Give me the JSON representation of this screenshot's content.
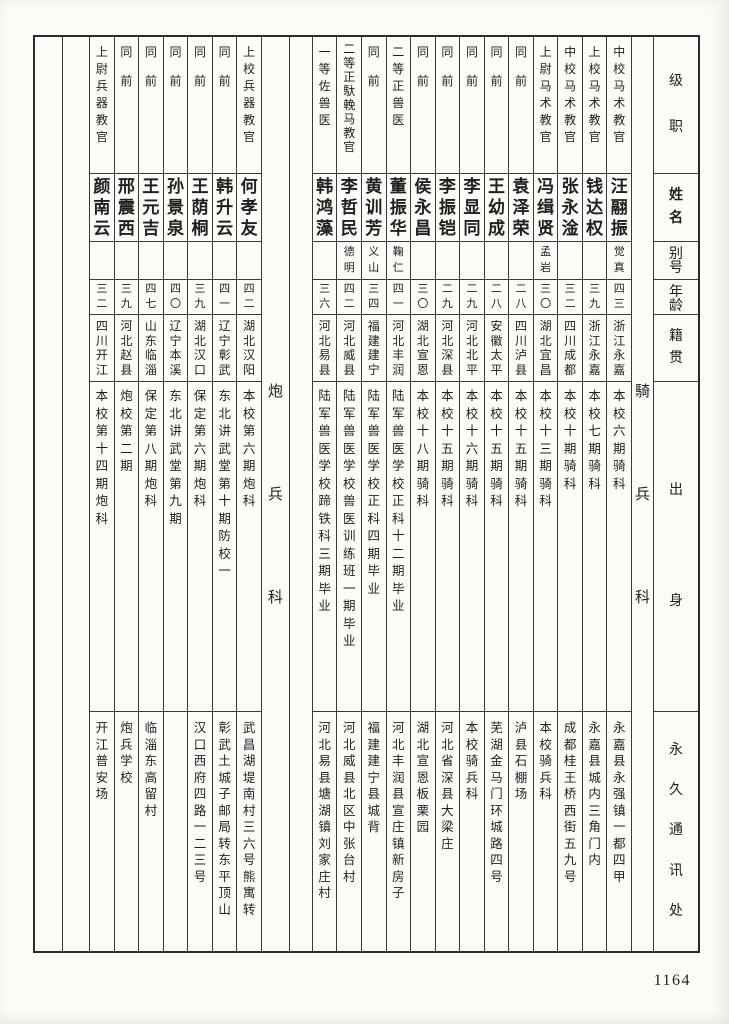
{
  "page": {
    "number": "1164"
  },
  "table": {
    "column_headers": [
      "级职",
      "姓名",
      "别号",
      "年龄",
      "籍贯",
      "出身",
      "永久通讯处"
    ],
    "sections": [
      {
        "label": "騎兵科",
        "trailing_empty_columns": 1,
        "members": [
          {
            "rank": "中校马术教官",
            "name": "汪翮振",
            "alias": "觉真",
            "age": "四三",
            "origin": "浙江永嘉",
            "background": "本校六期骑科",
            "address": "永嘉县永强镇一都四甲"
          },
          {
            "rank": "上校马术教官",
            "name": "钱达权",
            "alias": "",
            "age": "三九",
            "origin": "浙江永嘉",
            "background": "本校七期骑科",
            "address": "永嘉县城内三角门内"
          },
          {
            "rank": "中校马术教官",
            "name": "张永淦",
            "alias": "",
            "age": "三二",
            "origin": "四川成都",
            "background": "本校十期骑科",
            "address": "成都桂王桥西街五九号"
          },
          {
            "rank": "上尉马术教官",
            "name": "冯缉贤",
            "alias": "孟岩",
            "age": "三〇",
            "origin": "湖北宜昌",
            "background": "本校十三期骑科",
            "address": "本校骑兵科"
          },
          {
            "rank": "同前",
            "name": "袁泽荣",
            "alias": "",
            "age": "二八",
            "origin": "四川泸县",
            "background": "本校十五期骑科",
            "address": "泸县石棚场"
          },
          {
            "rank": "同前",
            "name": "王幼成",
            "alias": "",
            "age": "二八",
            "origin": "安徽太平",
            "background": "本校十五期骑科",
            "address": "芜湖金马门环城路四号"
          },
          {
            "rank": "同前",
            "name": "李显同",
            "alias": "",
            "age": "二九",
            "origin": "河北北平",
            "background": "本校十六期骑科",
            "address": "本校骑兵科"
          },
          {
            "rank": "同前",
            "name": "李振铠",
            "alias": "",
            "age": "二九",
            "origin": "河北深县",
            "background": "本校十五期骑科",
            "address": "河北省深县大梁庄"
          },
          {
            "rank": "同前",
            "name": "侯永昌",
            "alias": "",
            "age": "三〇",
            "origin": "湖北宣恩",
            "background": "本校十八期骑科",
            "address": "湖北宣恩板栗园"
          },
          {
            "rank": "二等正兽医",
            "name": "董振华",
            "alias": "鞠仁",
            "age": "四一",
            "origin": "河北丰润",
            "background": "陆军兽医学校正科十二期毕业",
            "address": "河北丰润县宣庄镇新房子"
          },
          {
            "rank": "同前",
            "name": "黄训芳",
            "alias": "义山",
            "age": "三四",
            "origin": "福建建宁",
            "background": "陆军兽医学校正科四期毕业",
            "address": "福建建宁县城背"
          },
          {
            "rank": "二等正馱輓马教官",
            "name": "李哲民",
            "alias": "德明",
            "age": "四二",
            "origin": "河北威县",
            "background": "陆军兽医学校兽医训练班一期毕业",
            "address": "河北威县北区中张台村"
          },
          {
            "rank": "一等佐兽医",
            "name": "韩鸿藻",
            "alias": "",
            "age": "三六",
            "origin": "河北易县",
            "background": "陆军兽医学校蹄铁科三期毕业",
            "address": "河北易县塘湖镇刘家庄村"
          }
        ]
      },
      {
        "label": "炮兵科",
        "trailing_empty_columns": 2,
        "members": [
          {
            "rank": "上校兵器教官",
            "name": "何孝友",
            "alias": "",
            "age": "四二",
            "origin": "湖北汉阳",
            "background": "本校第六期炮科",
            "address": "武昌湖堤南村三六号熊寓转"
          },
          {
            "rank": "同前",
            "name": "韩升云",
            "alias": "",
            "age": "四一",
            "origin": "辽宁彰武",
            "background": "东北讲武堂第十期防校一",
            "address": "彰武土城子邮局转东平顶山"
          },
          {
            "rank": "同前",
            "name": "王荫桐",
            "alias": "",
            "age": "三九",
            "origin": "湖北汉口",
            "background": "保定第六期炮科",
            "address": "汉口西府四路一二三号"
          },
          {
            "rank": "同前",
            "name": "孙景泉",
            "alias": "",
            "age": "四〇",
            "origin": "辽宁本溪",
            "background": "东北讲武堂第九期",
            "address": ""
          },
          {
            "rank": "同前",
            "name": "王元吉",
            "alias": "",
            "age": "四七",
            "origin": "山东临淄",
            "background": "保定第八期炮科",
            "address": "临淄东高留村"
          },
          {
            "rank": "同前",
            "name": "邢震西",
            "alias": "",
            "age": "三九",
            "origin": "河北赵县",
            "background": "炮校第二期",
            "address": "炮兵学校"
          },
          {
            "rank": "上尉兵器教官",
            "name": "颜南云",
            "alias": "",
            "age": "三二",
            "origin": "四川开江",
            "background": "本校第十四期炮科",
            "address": "开江普安场"
          }
        ]
      }
    ]
  }
}
